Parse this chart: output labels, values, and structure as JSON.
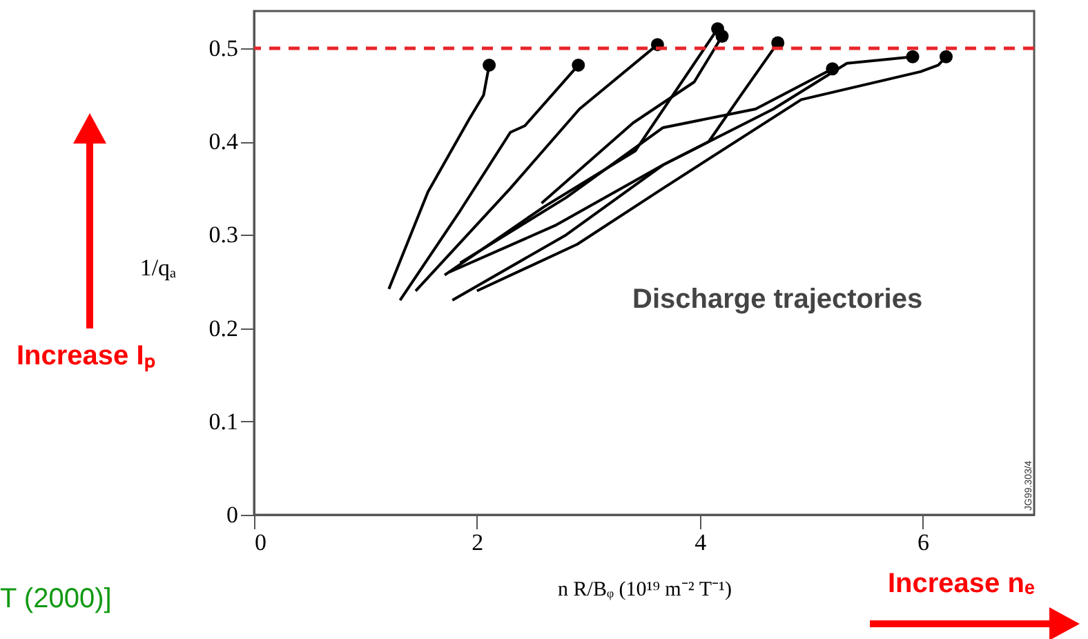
{
  "chart_data": {
    "type": "line",
    "xlabel": "n R/Bᵩ (10¹⁹ m⁻² T⁻¹)",
    "ylabel": "1/qₐ",
    "xlim": [
      0,
      7
    ],
    "ylim": [
      0,
      0.54
    ],
    "xticks": [
      0,
      2,
      4,
      6
    ],
    "yticks": [
      0,
      0.1,
      0.2,
      0.3,
      0.4,
      0.5
    ],
    "grid": false,
    "line_style": "solid",
    "series": [
      {
        "color": "#000000",
        "x": [
          1.21,
          1.56,
          1.93,
          2.06,
          2.11
        ],
        "values": [
          0.242,
          0.346,
          0.424,
          0.45,
          0.482
        ]
      },
      {
        "color": "#000000",
        "x": [
          1.31,
          1.85,
          2.3,
          2.43,
          2.91
        ],
        "values": [
          0.23,
          0.326,
          0.41,
          0.417,
          0.482
        ]
      },
      {
        "color": "#000000",
        "x": [
          1.45,
          2.3,
          2.92,
          3.62
        ],
        "values": [
          0.24,
          0.35,
          0.435,
          0.504
        ]
      },
      {
        "color": "#000000",
        "x": [
          1.71,
          2.6,
          3.42,
          4.16
        ],
        "values": [
          0.257,
          0.33,
          0.39,
          0.521
        ]
      },
      {
        "color": "#000000",
        "x": [
          2.58,
          3.4,
          3.95,
          4.2
        ],
        "values": [
          0.334,
          0.42,
          0.464,
          0.513
        ]
      },
      {
        "color": "#000000",
        "x": [
          1.75,
          2.7,
          3.67,
          4.08,
          4.37,
          4.7
        ],
        "values": [
          0.26,
          0.31,
          0.375,
          0.4,
          0.45,
          0.506
        ]
      },
      {
        "color": "#000000",
        "x": [
          1.85,
          2.8,
          3.67,
          4.5,
          5.19
        ],
        "values": [
          0.27,
          0.34,
          0.415,
          0.435,
          0.478
        ]
      },
      {
        "color": "#000000",
        "x": [
          1.78,
          2.8,
          3.67,
          4.66,
          5.32,
          5.91
        ],
        "values": [
          0.23,
          0.3,
          0.375,
          0.435,
          0.484,
          0.491
        ]
      },
      {
        "color": "#000000",
        "x": [
          2.0,
          2.9,
          3.67,
          4.91,
          5.98,
          6.14,
          6.21
        ],
        "values": [
          0.24,
          0.29,
          0.35,
          0.445,
          0.475,
          0.482,
          0.491
        ]
      },
      {
        "type": "scatter",
        "marker": "circle",
        "color": "#000000",
        "x": [
          2.11,
          2.91,
          3.62,
          4.16,
          4.2,
          4.7,
          5.19,
          5.91,
          6.21
        ],
        "values": [
          0.482,
          0.482,
          0.504,
          0.521,
          0.513,
          0.506,
          0.478,
          0.491,
          0.491
        ]
      }
    ],
    "ref_lines": [
      {
        "axis": "y",
        "value": 0.5,
        "color": "#e8262a",
        "line_style": "dashed"
      }
    ],
    "annotations": [
      "Discharge trajectories",
      "Increase Iₚ",
      "Increase nₑ",
      "T (2000)]",
      "JG99.303/4"
    ]
  }
}
